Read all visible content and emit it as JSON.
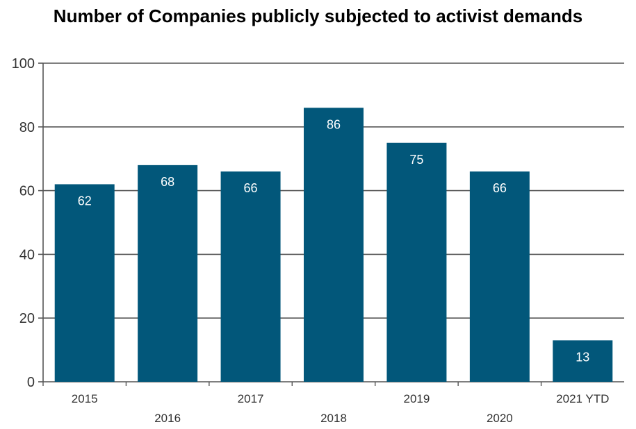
{
  "chart_data": {
    "type": "bar",
    "title": "Number of Companies publicly subjected to activist demands",
    "categories": [
      "2015",
      "2016",
      "2017",
      "2018",
      "2019",
      "2020",
      "2021 YTD"
    ],
    "values": [
      62,
      68,
      66,
      86,
      75,
      66,
      13
    ],
    "data_labels": [
      "62",
      "68",
      "66",
      "86",
      "75",
      "66",
      "13"
    ],
    "ylim": [
      0,
      100
    ],
    "yticks": [
      "0",
      "20",
      "40",
      "60",
      "80",
      "100"
    ],
    "grid": true,
    "legend": "none",
    "xlabel": "",
    "ylabel": "",
    "bar_color": "#02577A",
    "label_color": "#ffffff"
  }
}
